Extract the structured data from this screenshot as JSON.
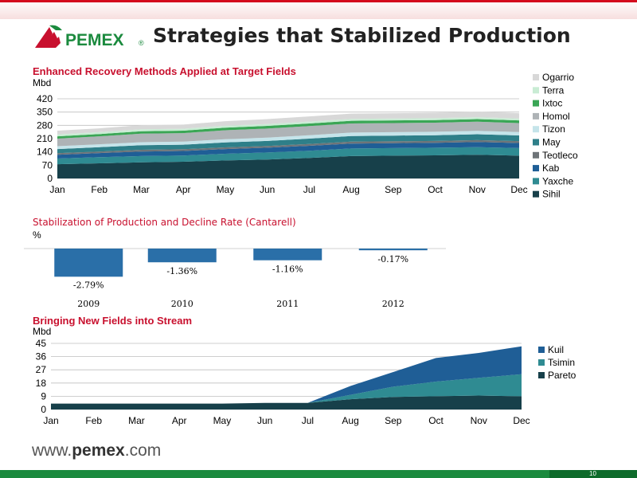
{
  "header": {
    "title": "Strategies that Stabilized Production",
    "logo_text": "PEMEX",
    "logo_mark": "®"
  },
  "footer": {
    "url_prefix": "www.",
    "url_brand": "pemex",
    "url_suffix": ".com",
    "page_number": "10"
  },
  "colors": {
    "brand_red": "#c8102e",
    "brand_green": "#1b8a3e"
  },
  "chart_data": [
    {
      "type": "area",
      "stacked": true,
      "title": "Enhanced Recovery Methods Applied at Target Fields",
      "ylabel": "Mbd",
      "ylim": [
        0,
        420
      ],
      "yticks": [
        0,
        70,
        140,
        210,
        280,
        350,
        420
      ],
      "grid": true,
      "legend": "right",
      "categories": [
        "Jan",
        "Feb",
        "Mar",
        "Apr",
        "May",
        "Jun",
        "Jul",
        "Aug",
        "Sep",
        "Oct",
        "Nov",
        "Dec"
      ],
      "series": [
        {
          "name": "Sihil",
          "color": "#17404a",
          "values": [
            75,
            80,
            85,
            88,
            95,
            100,
            108,
            118,
            120,
            122,
            125,
            120
          ]
        },
        {
          "name": "Yaxche",
          "color": "#2f8b92",
          "values": [
            30,
            32,
            33,
            33,
            35,
            37,
            38,
            40,
            40,
            40,
            40,
            40
          ]
        },
        {
          "name": "Kab",
          "color": "#1f5e96",
          "values": [
            20,
            22,
            24,
            24,
            25,
            25,
            26,
            26,
            26,
            26,
            27,
            27
          ]
        },
        {
          "name": "Teotleco",
          "color": "#6e7478",
          "values": [
            8,
            8,
            9,
            9,
            9,
            9,
            10,
            10,
            10,
            10,
            10,
            10
          ]
        },
        {
          "name": "May",
          "color": "#2e7f89",
          "values": [
            22,
            23,
            24,
            24,
            26,
            27,
            28,
            30,
            30,
            30,
            31,
            30
          ]
        },
        {
          "name": "Tizon",
          "color": "#c5e4ea",
          "values": [
            15,
            15,
            16,
            16,
            17,
            17,
            18,
            18,
            18,
            18,
            18,
            18
          ]
        },
        {
          "name": "Homol",
          "color": "#aeb3b6",
          "values": [
            40,
            42,
            45,
            45,
            47,
            48,
            48,
            48,
            48,
            48,
            48,
            47
          ]
        },
        {
          "name": "Ixtoc",
          "color": "#3aa655",
          "values": [
            12,
            12,
            13,
            13,
            14,
            14,
            14,
            14,
            14,
            14,
            14,
            14
          ]
        },
        {
          "name": "Terra",
          "color": "#c9ecd4",
          "values": [
            10,
            10,
            10,
            10,
            10,
            10,
            10,
            10,
            10,
            10,
            10,
            10
          ]
        },
        {
          "name": "Ogarrio",
          "color": "#d8d8d8",
          "values": [
            20,
            20,
            22,
            22,
            24,
            26,
            27,
            28,
            28,
            28,
            29,
            28
          ]
        }
      ]
    },
    {
      "type": "bar",
      "title": "Stabilization of Production and Decline Rate (Cantarell)",
      "ylabel": "%",
      "categories": [
        "2009",
        "2010",
        "2011",
        "2012"
      ],
      "values": [
        -2.79,
        -1.36,
        -1.16,
        -0.17
      ],
      "labels": [
        "-2.79%",
        "-1.36%",
        "-1.16%",
        "-0.17%"
      ],
      "ylim": [
        -3,
        0
      ],
      "grid": false
    },
    {
      "type": "area",
      "stacked": true,
      "title": "Bringing New Fields into Stream",
      "ylabel": "Mbd",
      "ylim": [
        0,
        45
      ],
      "yticks": [
        0,
        9,
        18,
        27,
        36,
        45
      ],
      "grid": true,
      "legend": "right",
      "categories": [
        "Jan",
        "Feb",
        "Mar",
        "Apr",
        "May",
        "Jun",
        "Jul",
        "Aug",
        "Sep",
        "Oct",
        "Nov",
        "Dec"
      ],
      "series": [
        {
          "name": "Pareto",
          "color": "#17404a",
          "values": [
            4,
            4,
            4,
            4,
            4,
            4.5,
            4.5,
            7,
            8.5,
            9,
            9.5,
            9
          ]
        },
        {
          "name": "Tsimin",
          "color": "#2f8b92",
          "values": [
            0,
            0,
            0,
            0,
            0,
            0,
            0,
            3,
            7,
            10,
            12,
            15
          ]
        },
        {
          "name": "Kuil",
          "color": "#1f5e96",
          "values": [
            0,
            0,
            0,
            0,
            0,
            0,
            0,
            6,
            10,
            16,
            17,
            19
          ]
        }
      ]
    }
  ]
}
